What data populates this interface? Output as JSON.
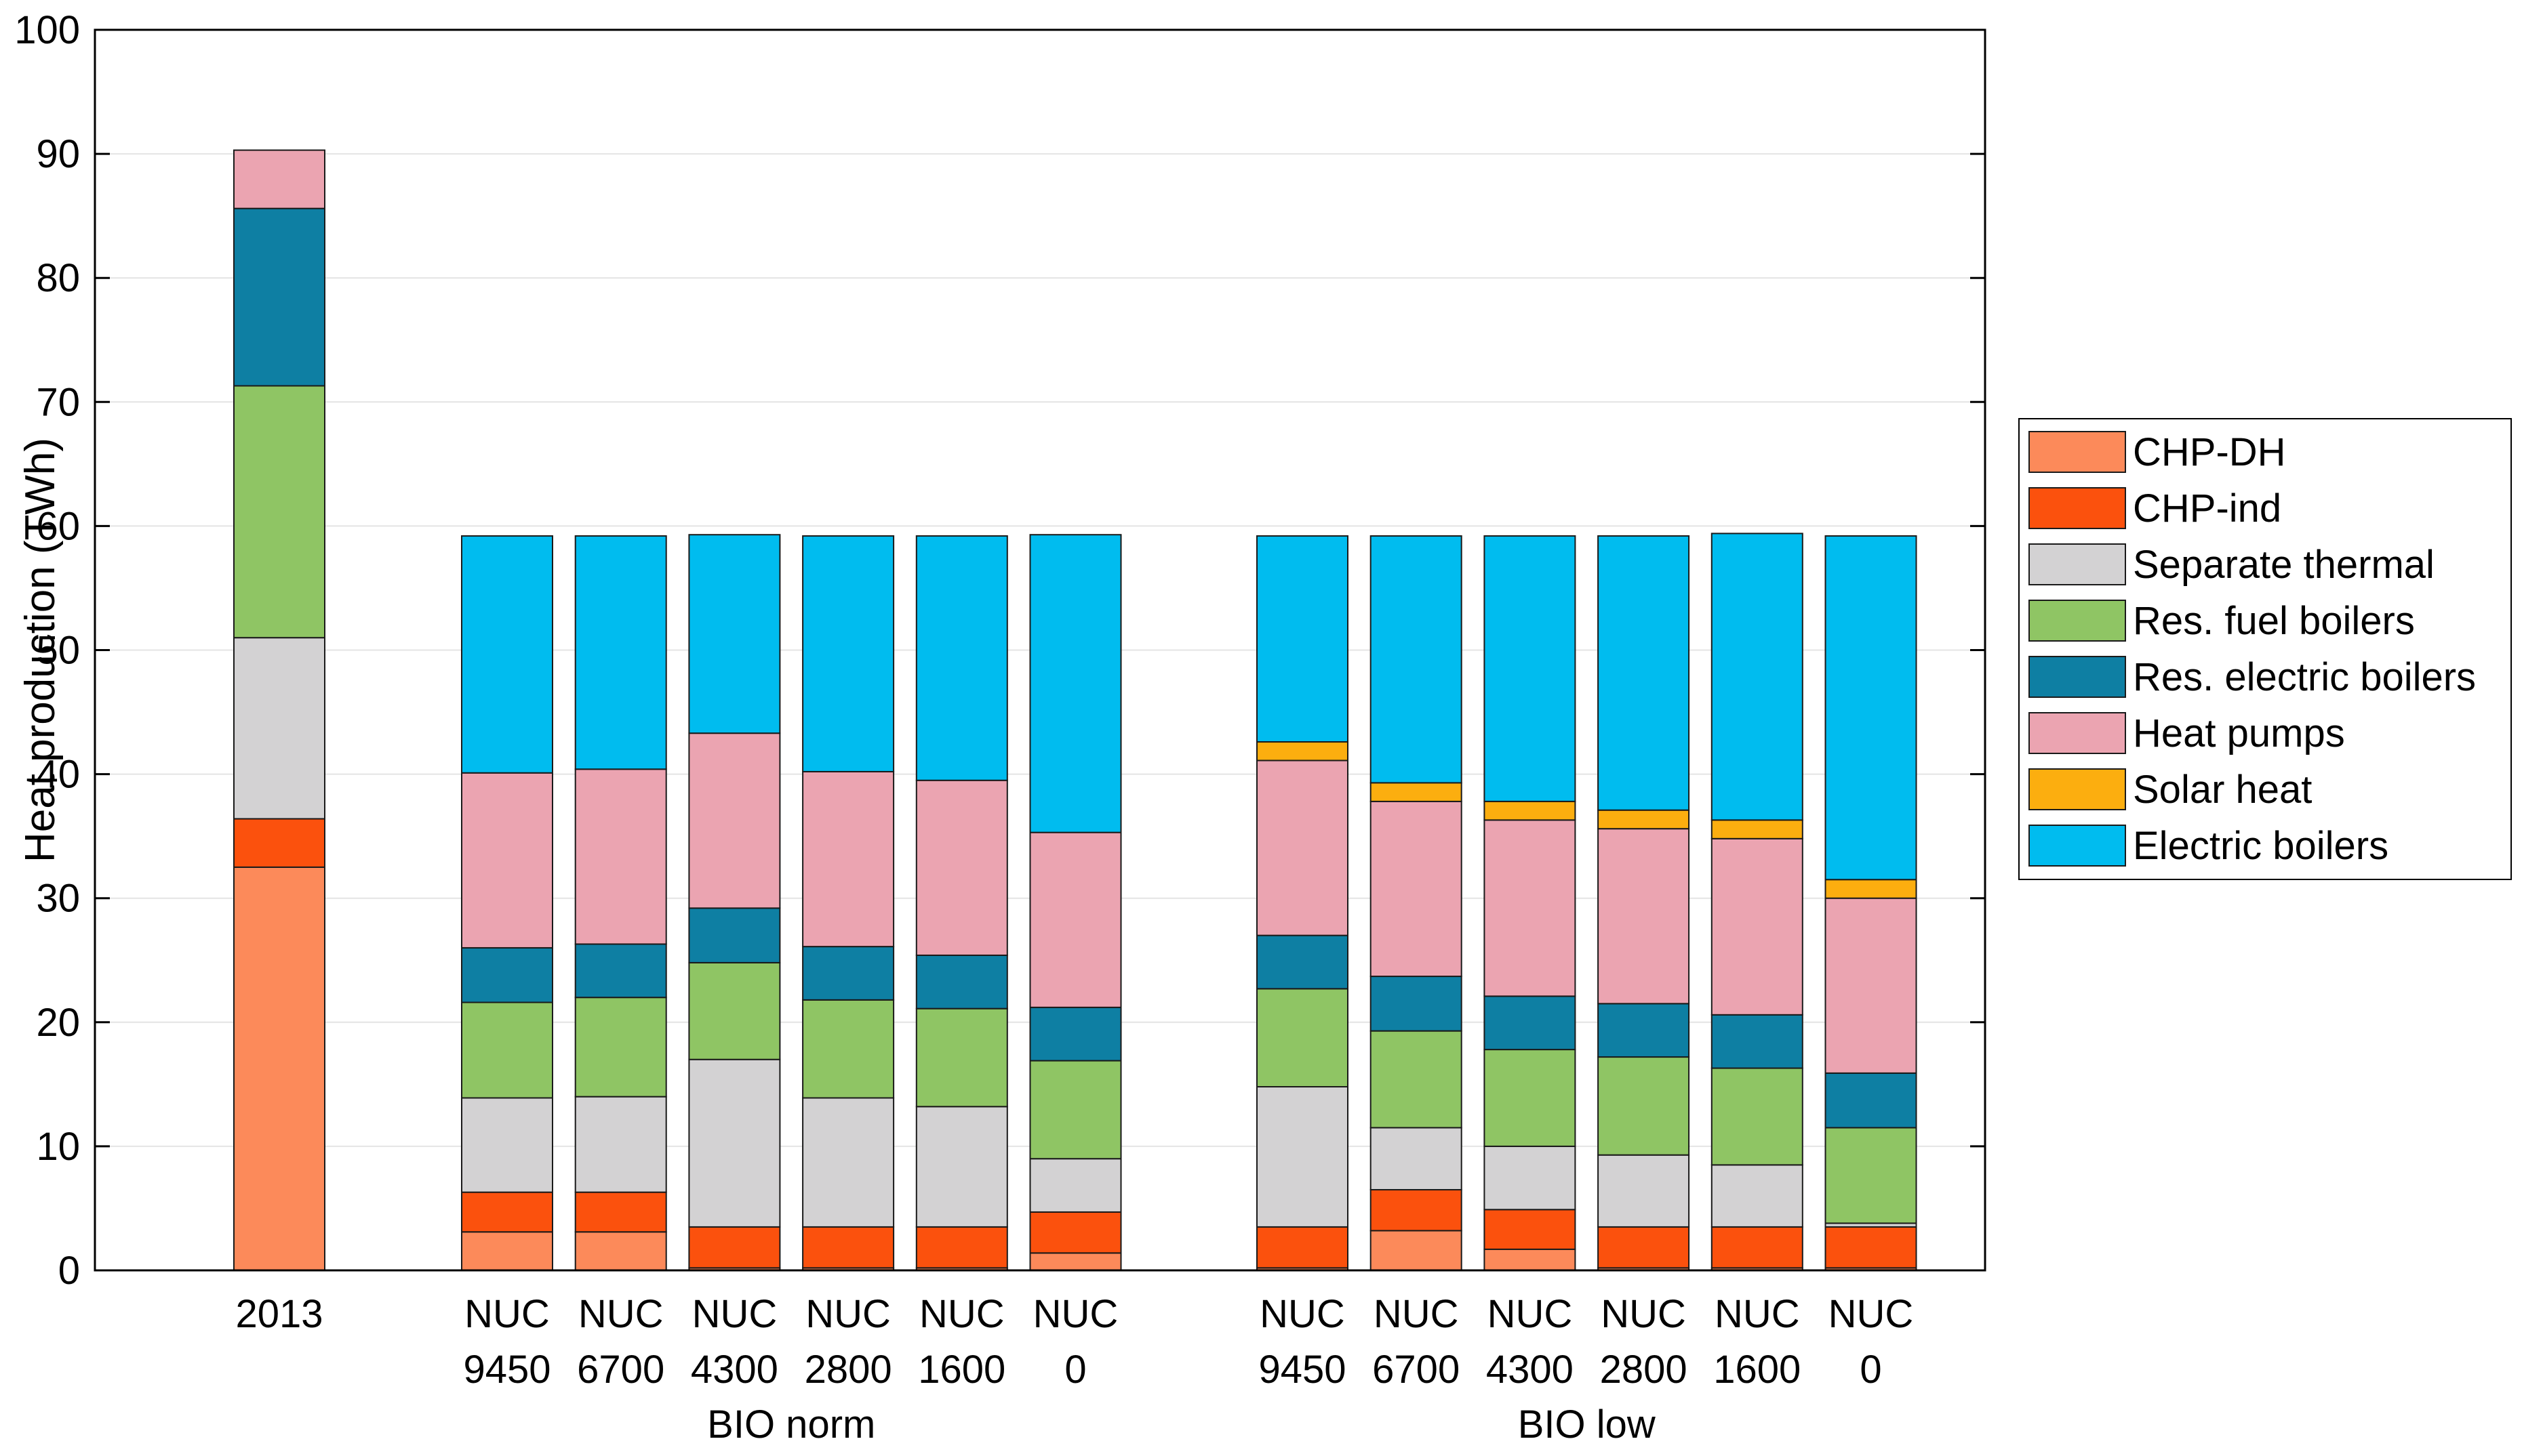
{
  "chart_data": {
    "type": "stacked-bar",
    "title": "",
    "xlabel": "",
    "ylabel": "Heat production (TWh)",
    "ylim": [
      0,
      100
    ],
    "yticks": [
      0,
      10,
      20,
      30,
      40,
      50,
      60,
      70,
      80,
      90,
      100
    ],
    "grid": true,
    "legend_position": "right",
    "colors": {
      "CHP-DH": "#fc8a5a",
      "CHP-ind": "#fb510d",
      "Separate thermal": "#d3d2d3",
      "Res. fuel boilers": "#8fc564",
      "Res. electric boilers": "#0e7fa3",
      "Heat pumps": "#eba4b1",
      "Solar heat": "#fcae0f",
      "Electric boilers": "#00bcef"
    },
    "series_order": [
      "CHP-DH",
      "CHP-ind",
      "Separate thermal",
      "Res. fuel boilers",
      "Res. electric boilers",
      "Heat pumps",
      "Solar heat",
      "Electric boilers"
    ],
    "legend": [
      "CHP-DH",
      "CHP-ind",
      "Separate thermal",
      "Res. fuel boilers",
      "Res. electric boilers",
      "Heat pumps",
      "Solar heat",
      "Electric boilers"
    ],
    "groups": [
      {
        "label": "",
        "bars": [
          0
        ]
      },
      {
        "label": "BIO norm",
        "bars": [
          1,
          2,
          3,
          4,
          5,
          6
        ]
      },
      {
        "label": "BIO low",
        "bars": [
          7,
          8,
          9,
          10,
          11,
          12
        ]
      }
    ],
    "bars": [
      {
        "label": [
          "2013"
        ],
        "values": [
          32.5,
          3.9,
          14.6,
          20.3,
          14.3,
          4.7,
          0,
          0
        ]
      },
      {
        "label": [
          "NUC",
          "9450"
        ],
        "values": [
          3.1,
          3.2,
          7.6,
          7.7,
          4.4,
          14.1,
          0,
          19.1
        ]
      },
      {
        "label": [
          "NUC",
          "6700"
        ],
        "values": [
          3.1,
          3.2,
          7.7,
          8.0,
          4.3,
          14.1,
          0,
          18.8
        ]
      },
      {
        "label": [
          "NUC",
          "4300"
        ],
        "values": [
          0.2,
          3.3,
          13.5,
          7.8,
          4.4,
          14.1,
          0,
          16.0
        ]
      },
      {
        "label": [
          "NUC",
          "2800"
        ],
        "values": [
          0.2,
          3.3,
          10.4,
          7.9,
          4.3,
          14.1,
          0,
          19.0
        ]
      },
      {
        "label": [
          "NUC",
          "1600"
        ],
        "values": [
          0.2,
          3.3,
          9.7,
          7.9,
          4.3,
          14.1,
          0,
          19.7
        ]
      },
      {
        "label": [
          "NUC",
          "0"
        ],
        "values": [
          1.4,
          3.3,
          4.3,
          7.9,
          4.3,
          14.1,
          0,
          24.0
        ]
      },
      {
        "label": [
          "NUC",
          "9450"
        ],
        "values": [
          0.2,
          3.3,
          11.3,
          7.9,
          4.3,
          14.1,
          1.5,
          16.6
        ]
      },
      {
        "label": [
          "NUC",
          "6700"
        ],
        "values": [
          3.2,
          3.3,
          5.0,
          7.8,
          4.4,
          14.1,
          1.5,
          19.9
        ]
      },
      {
        "label": [
          "NUC",
          "4300"
        ],
        "values": [
          1.7,
          3.2,
          5.1,
          7.8,
          4.3,
          14.2,
          1.5,
          21.4
        ]
      },
      {
        "label": [
          "NUC",
          "2800"
        ],
        "values": [
          0.2,
          3.3,
          5.8,
          7.9,
          4.3,
          14.1,
          1.5,
          22.1
        ]
      },
      {
        "label": [
          "NUC",
          "1600"
        ],
        "values": [
          0.2,
          3.3,
          5.0,
          7.8,
          4.3,
          14.2,
          1.5,
          23.1
        ]
      },
      {
        "label": [
          "NUC",
          "0"
        ],
        "values": [
          0.2,
          3.3,
          0.3,
          7.7,
          4.4,
          14.1,
          1.5,
          27.7
        ]
      }
    ]
  }
}
